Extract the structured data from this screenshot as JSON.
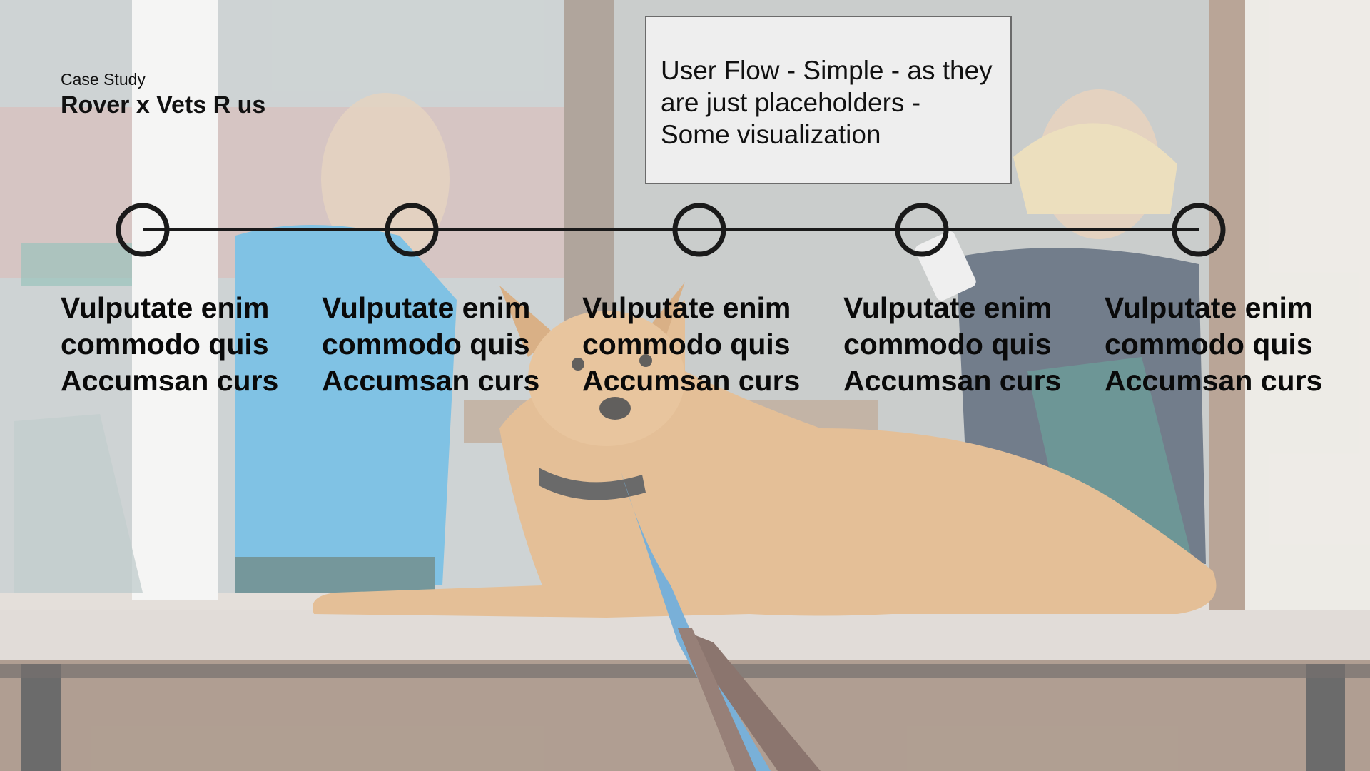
{
  "slide": {
    "eyebrow": "Case Study",
    "title": "Rover x Vets R us",
    "note": "User Flow - Simple - as they are just placeholders - Some visualization"
  },
  "timeline": {
    "node_count": 5,
    "line_color": "#1a1a1a",
    "steps": [
      {
        "line1": "Vulputate enim",
        "line2": "commodo quis",
        "line3": "Accumsan curs"
      },
      {
        "line1": "Vulputate enim",
        "line2": "commodo quis",
        "line3": "Accumsan curs"
      },
      {
        "line1": "Vulputate enim",
        "line2": "commodo quis",
        "line3": "Accumsan curs"
      },
      {
        "line1": "Vulputate enim",
        "line2": "commodo quis",
        "line3": "Accumsan curs"
      },
      {
        "line1": "Vulputate enim",
        "line2": "commodo quis",
        "line3": "Accumsan curs"
      }
    ]
  },
  "background": {
    "description_icon": "dog-on-bench-photo",
    "accent_colors": {
      "jacket": "#4aa8d8",
      "dog": "#d9a46a",
      "wood": "#8a6a55",
      "leash": "#3f8fc7"
    }
  }
}
